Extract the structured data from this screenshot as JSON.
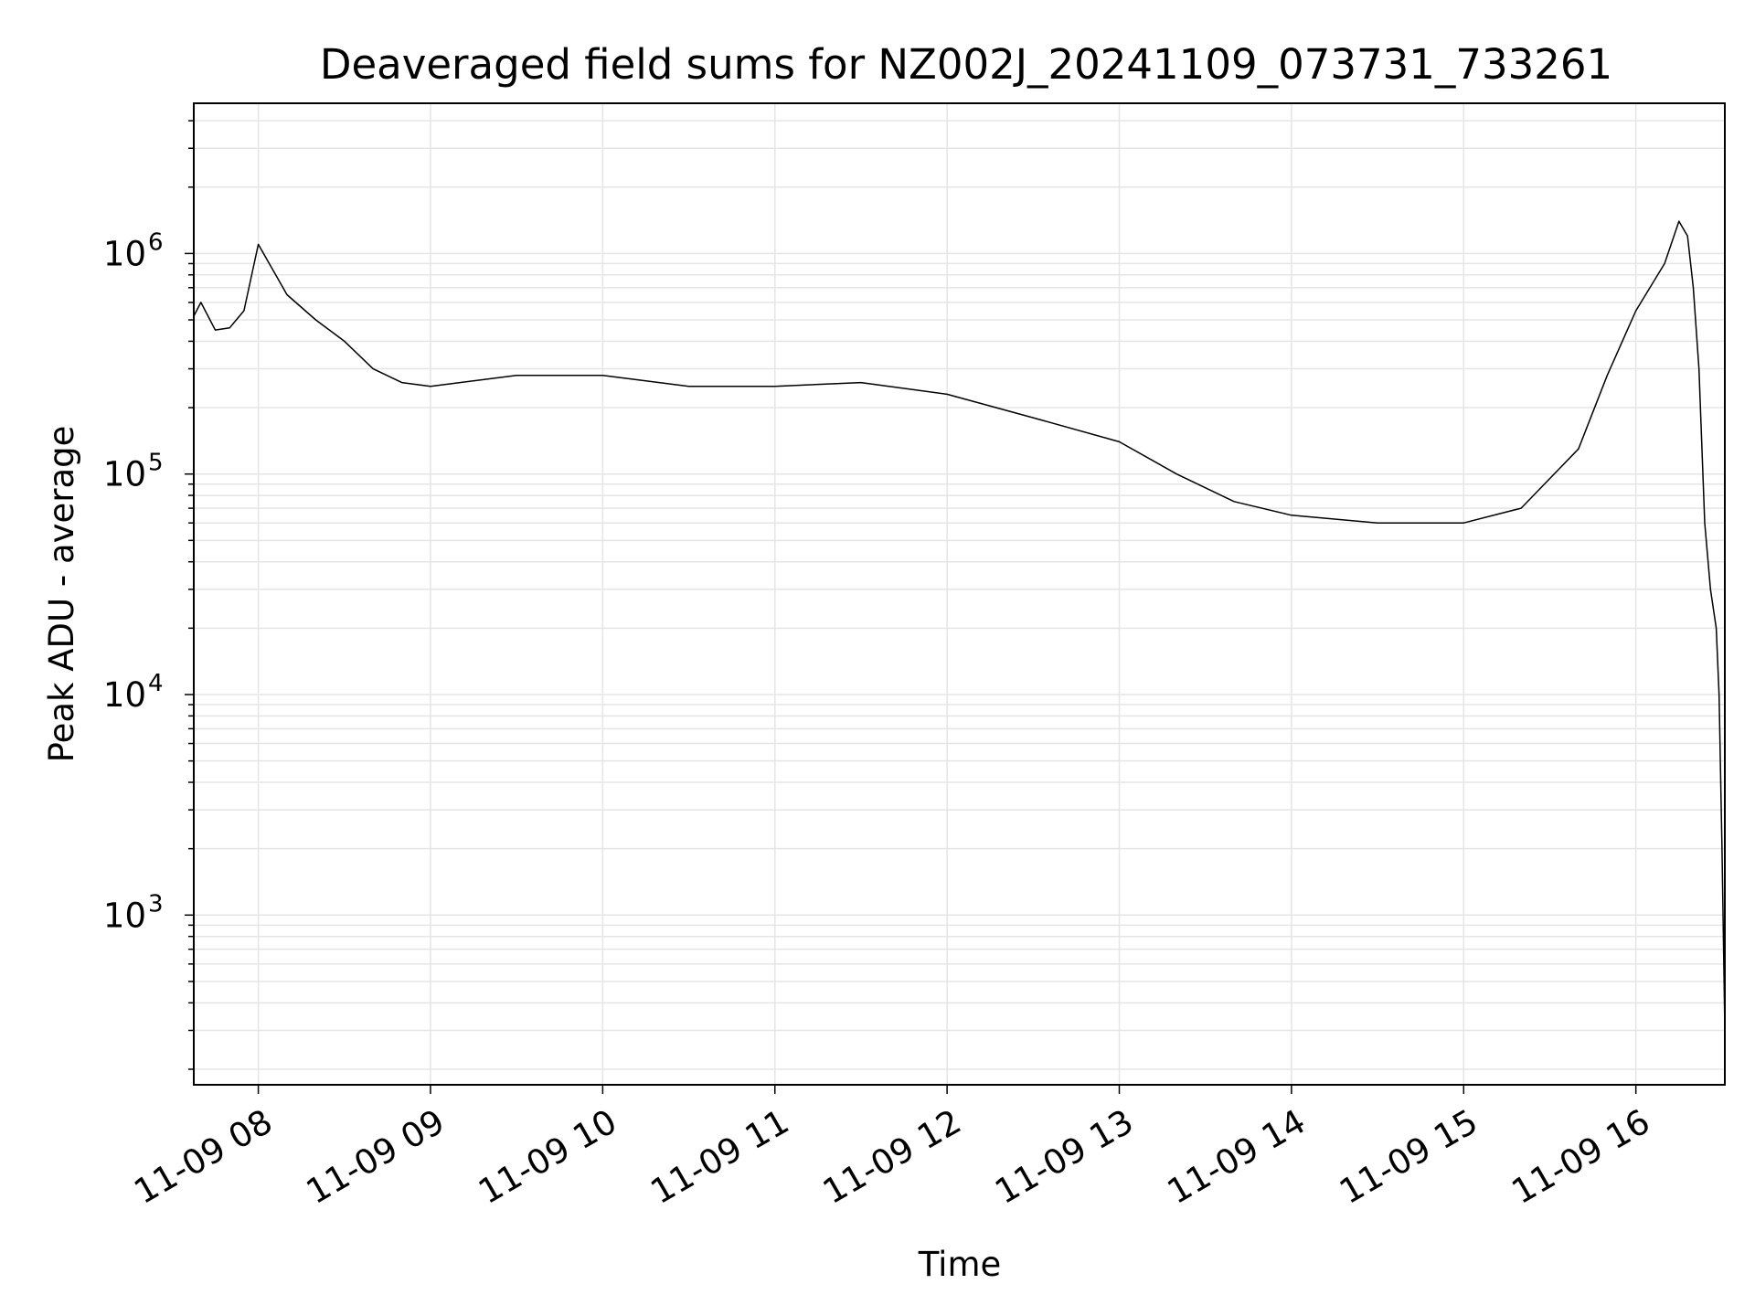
{
  "chart_data": {
    "type": "line",
    "title": "Deaveraged field sums for NZ002J_20241109_073731_733261",
    "xlabel": "Time",
    "ylabel": "Peak ADU - average",
    "x_axis_kind": "time",
    "x_range": [
      "2024-11-09T07:37:31",
      "2024-11-09T16:31:00"
    ],
    "x_ticks": [
      {
        "t": "2024-11-09T08:00:00",
        "label": "11-09 08"
      },
      {
        "t": "2024-11-09T09:00:00",
        "label": "11-09 09"
      },
      {
        "t": "2024-11-09T10:00:00",
        "label": "11-09 10"
      },
      {
        "t": "2024-11-09T11:00:00",
        "label": "11-09 11"
      },
      {
        "t": "2024-11-09T12:00:00",
        "label": "11-09 12"
      },
      {
        "t": "2024-11-09T13:00:00",
        "label": "11-09 13"
      },
      {
        "t": "2024-11-09T14:00:00",
        "label": "11-09 14"
      },
      {
        "t": "2024-11-09T15:00:00",
        "label": "11-09 15"
      },
      {
        "t": "2024-11-09T16:00:00",
        "label": "11-09 16"
      }
    ],
    "y_scale": "log",
    "ylim": [
      170,
      4800000
    ],
    "y_ticks": [
      {
        "value": 1000,
        "base": "10",
        "exp": "3"
      },
      {
        "value": 10000,
        "base": "10",
        "exp": "4"
      },
      {
        "value": 100000,
        "base": "10",
        "exp": "5"
      },
      {
        "value": 1000000,
        "base": "10",
        "exp": "6"
      }
    ],
    "grid": true,
    "line_color": "#000000",
    "grid_color": "#e5e5e5",
    "series": [
      {
        "points": [
          [
            "2024-11-09T07:37:31",
            520000
          ],
          [
            "2024-11-09T07:40:00",
            600000
          ],
          [
            "2024-11-09T07:45:00",
            450000
          ],
          [
            "2024-11-09T07:50:00",
            460000
          ],
          [
            "2024-11-09T07:55:00",
            550000
          ],
          [
            "2024-11-09T08:00:00",
            1100000
          ],
          [
            "2024-11-09T08:10:00",
            650000
          ],
          [
            "2024-11-09T08:20:00",
            500000
          ],
          [
            "2024-11-09T08:30:00",
            400000
          ],
          [
            "2024-11-09T08:40:00",
            300000
          ],
          [
            "2024-11-09T08:50:00",
            260000
          ],
          [
            "2024-11-09T09:00:00",
            250000
          ],
          [
            "2024-11-09T09:30:00",
            280000
          ],
          [
            "2024-11-09T10:00:00",
            280000
          ],
          [
            "2024-11-09T10:30:00",
            250000
          ],
          [
            "2024-11-09T11:00:00",
            250000
          ],
          [
            "2024-11-09T11:30:00",
            260000
          ],
          [
            "2024-11-09T12:00:00",
            230000
          ],
          [
            "2024-11-09T12:30:00",
            180000
          ],
          [
            "2024-11-09T13:00:00",
            140000
          ],
          [
            "2024-11-09T13:20:00",
            100000
          ],
          [
            "2024-11-09T13:40:00",
            75000
          ],
          [
            "2024-11-09T14:00:00",
            65000
          ],
          [
            "2024-11-09T14:30:00",
            60000
          ],
          [
            "2024-11-09T15:00:00",
            60000
          ],
          [
            "2024-11-09T15:20:00",
            70000
          ],
          [
            "2024-11-09T15:40:00",
            130000
          ],
          [
            "2024-11-09T15:50:00",
            280000
          ],
          [
            "2024-11-09T16:00:00",
            550000
          ],
          [
            "2024-11-09T16:10:00",
            900000
          ],
          [
            "2024-11-09T16:15:00",
            1400000
          ],
          [
            "2024-11-09T16:18:00",
            1200000
          ],
          [
            "2024-11-09T16:20:00",
            700000
          ],
          [
            "2024-11-09T16:22:00",
            300000
          ],
          [
            "2024-11-09T16:24:00",
            60000
          ],
          [
            "2024-11-09T16:26:00",
            30000
          ],
          [
            "2024-11-09T16:28:00",
            20000
          ],
          [
            "2024-11-09T16:29:00",
            10000
          ],
          [
            "2024-11-09T16:30:00",
            2000
          ],
          [
            "2024-11-09T16:31:00",
            300
          ]
        ]
      }
    ]
  }
}
